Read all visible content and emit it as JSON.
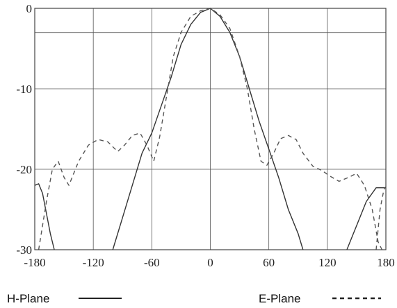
{
  "chart_data": {
    "type": "line",
    "title": "",
    "xlabel": "",
    "ylabel": "",
    "xlim": [
      -180,
      180
    ],
    "ylim": [
      -30,
      0
    ],
    "x_ticks": [
      -180,
      -120,
      -60,
      0,
      60,
      120,
      180
    ],
    "y_ticks": [
      0,
      -10,
      -20,
      -30
    ],
    "x_tick_labels": [
      "-180",
      "-120",
      "-60",
      "0",
      "60",
      "120",
      "180"
    ],
    "y_tick_labels": [
      "0",
      "-10",
      "-20",
      "-30"
    ],
    "reference_line_y": -3,
    "grid": true,
    "legend_position": "bottom",
    "series": [
      {
        "name": "H-Plane",
        "style": "solid",
        "color": "#333333",
        "segments": [
          [
            [
              -180,
              -22
            ],
            [
              -176,
              -21.8
            ],
            [
              -172,
              -23
            ],
            [
              -168,
              -25.5
            ],
            [
              -164,
              -28
            ],
            [
              -160,
              -30
            ]
          ],
          [
            [
              -100,
              -30
            ],
            [
              -90,
              -26
            ],
            [
              -80,
              -22
            ],
            [
              -70,
              -18
            ],
            [
              -60,
              -15.5
            ],
            [
              -50,
              -12
            ],
            [
              -40,
              -8.5
            ],
            [
              -30,
              -4.5
            ],
            [
              -20,
              -2
            ],
            [
              -10,
              -0.5
            ],
            [
              0,
              0
            ],
            [
              10,
              -1
            ],
            [
              20,
              -3
            ],
            [
              30,
              -6
            ],
            [
              40,
              -10
            ],
            [
              50,
              -14
            ],
            [
              60,
              -17.5
            ],
            [
              70,
              -21
            ],
            [
              80,
              -25
            ],
            [
              90,
              -28
            ],
            [
              95,
              -30
            ]
          ],
          [
            [
              140,
              -30
            ],
            [
              150,
              -27
            ],
            [
              160,
              -24
            ],
            [
              170,
              -22.3
            ],
            [
              180,
              -22.3
            ]
          ]
        ]
      },
      {
        "name": "E-Plane",
        "style": "dashed",
        "color": "#555555",
        "segments": [
          [
            [
              -176,
              -30
            ],
            [
              -172,
              -27
            ],
            [
              -168,
              -24
            ],
            [
              -162,
              -20
            ],
            [
              -156,
              -19
            ],
            [
              -150,
              -21
            ],
            [
              -145,
              -22
            ],
            [
              -135,
              -19
            ],
            [
              -125,
              -17
            ],
            [
              -115,
              -16.3
            ],
            [
              -105,
              -16.6
            ],
            [
              -95,
              -17.8
            ],
            [
              -88,
              -17
            ],
            [
              -80,
              -15.8
            ],
            [
              -72,
              -15.5
            ],
            [
              -65,
              -17
            ],
            [
              -58,
              -19
            ],
            [
              -52,
              -16
            ],
            [
              -45,
              -11
            ],
            [
              -38,
              -6
            ],
            [
              -30,
              -3
            ],
            [
              -20,
              -1
            ],
            [
              -10,
              -0.3
            ],
            [
              0,
              0
            ],
            [
              10,
              -0.8
            ],
            [
              20,
              -2.5
            ],
            [
              30,
              -6
            ],
            [
              38,
              -10
            ],
            [
              45,
              -15
            ],
            [
              52,
              -19
            ],
            [
              58,
              -19.5
            ],
            [
              65,
              -18
            ],
            [
              72,
              -16.2
            ],
            [
              80,
              -15.8
            ],
            [
              88,
              -16.3
            ],
            [
              95,
              -18
            ],
            [
              105,
              -19.6
            ],
            [
              115,
              -20.2
            ],
            [
              122,
              -20.8
            ],
            [
              132,
              -21.5
            ],
            [
              142,
              -21
            ],
            [
              150,
              -20.5
            ],
            [
              158,
              -22
            ],
            [
              166,
              -25
            ],
            [
              172,
              -29
            ],
            [
              176,
              -30
            ]
          ],
          [
            [
              170,
              -30
            ],
            [
              174,
              -25
            ],
            [
              178,
              -22.5
            ],
            [
              180,
              -22.2
            ]
          ]
        ]
      }
    ]
  },
  "legend": {
    "h_label": "H-Plane",
    "e_label": "E-Plane"
  }
}
